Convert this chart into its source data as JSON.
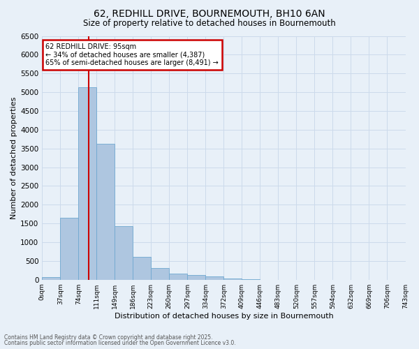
{
  "title_line1": "62, REDHILL DRIVE, BOURNEMOUTH, BH10 6AN",
  "title_line2": "Size of property relative to detached houses in Bournemouth",
  "bar_values": [
    75,
    1650,
    5130,
    3620,
    1420,
    610,
    320,
    160,
    130,
    80,
    40,
    10,
    0,
    0,
    0,
    0,
    0,
    0,
    0,
    0
  ],
  "bin_labels": [
    "0sqm",
    "37sqm",
    "74sqm",
    "111sqm",
    "149sqm",
    "186sqm",
    "223sqm",
    "260sqm",
    "297sqm",
    "334sqm",
    "372sqm",
    "409sqm",
    "446sqm",
    "483sqm",
    "520sqm",
    "557sqm",
    "594sqm",
    "632sqm",
    "669sqm",
    "706sqm",
    "743sqm"
  ],
  "bar_color": "#aec6e0",
  "bar_edge_color": "#6fa8d0",
  "grid_color": "#ccdaeb",
  "background_color": "#e8f0f8",
  "vline_x": 2.57,
  "vline_color": "#cc0000",
  "ylabel": "Number of detached properties",
  "xlabel": "Distribution of detached houses by size in Bournemouth",
  "ylim": [
    0,
    6500
  ],
  "yticks": [
    0,
    500,
    1000,
    1500,
    2000,
    2500,
    3000,
    3500,
    4000,
    4500,
    5000,
    5500,
    6000,
    6500
  ],
  "annotation_title": "62 REDHILL DRIVE: 95sqm",
  "annotation_line2": "← 34% of detached houses are smaller (4,387)",
  "annotation_line3": "65% of semi-detached houses are larger (8,491) →",
  "annotation_box_color": "#cc0000",
  "footer_line1": "Contains HM Land Registry data © Crown copyright and database right 2025.",
  "footer_line2": "Contains public sector information licensed under the Open Government Licence v3.0."
}
